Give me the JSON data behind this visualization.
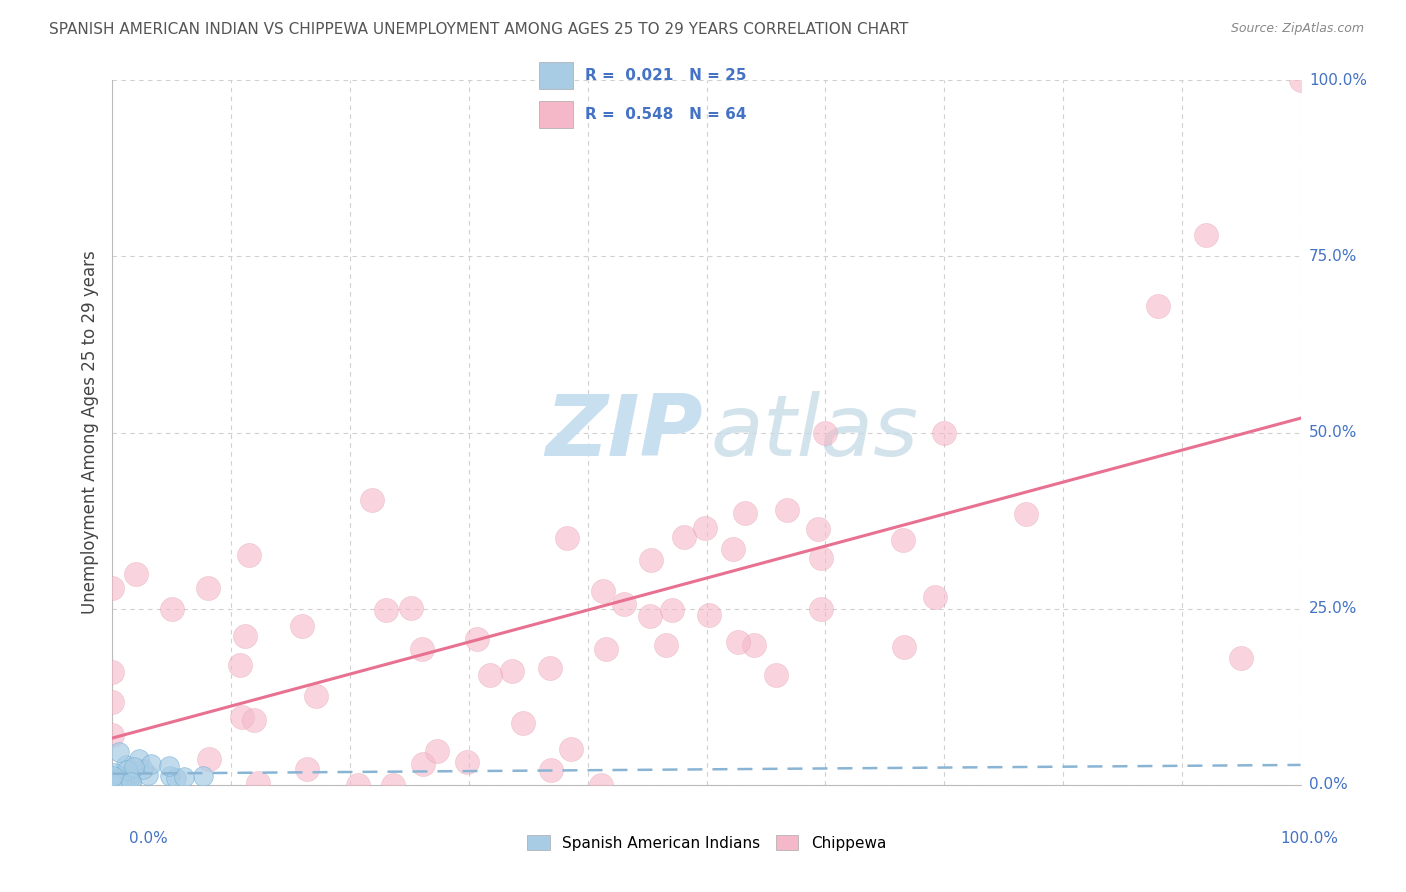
{
  "title": "SPANISH AMERICAN INDIAN VS CHIPPEWA UNEMPLOYMENT AMONG AGES 25 TO 29 YEARS CORRELATION CHART",
  "source": "Source: ZipAtlas.com",
  "ylabel": "Unemployment Among Ages 25 to 29 years",
  "blue_color": "#a8cce4",
  "blue_edge_color": "#6baed6",
  "pink_color": "#f5b8c8",
  "pink_edge_color": "#de8fa0",
  "blue_line_color": "#8ab4d4",
  "pink_line_color": "#e87090",
  "axis_color": "#4472c4",
  "title_color": "#555555",
  "source_color": "#888888",
  "watermark_zip_color": "#c8dff0",
  "watermark_atlas_color": "#c8dce8",
  "grid_color": "#d0d0d0",
  "R_blue": 0.021,
  "N_blue": 25,
  "R_pink": 0.548,
  "N_pink": 64,
  "ytick_positions": [
    0.0,
    0.25,
    0.5,
    0.75,
    1.0
  ],
  "ytick_labels": [
    "0.0%",
    "25.0%",
    "50.0%",
    "75.0%",
    "100.0%"
  ],
  "xtick_left": "0.0%",
  "xtick_right": "100.0%",
  "legend_label1": "Spanish American Indians",
  "legend_label2": "Chippewa",
  "legend_r_blue": "R =  0.021   N = 25",
  "legend_r_pink": "R =  0.548   N = 64"
}
